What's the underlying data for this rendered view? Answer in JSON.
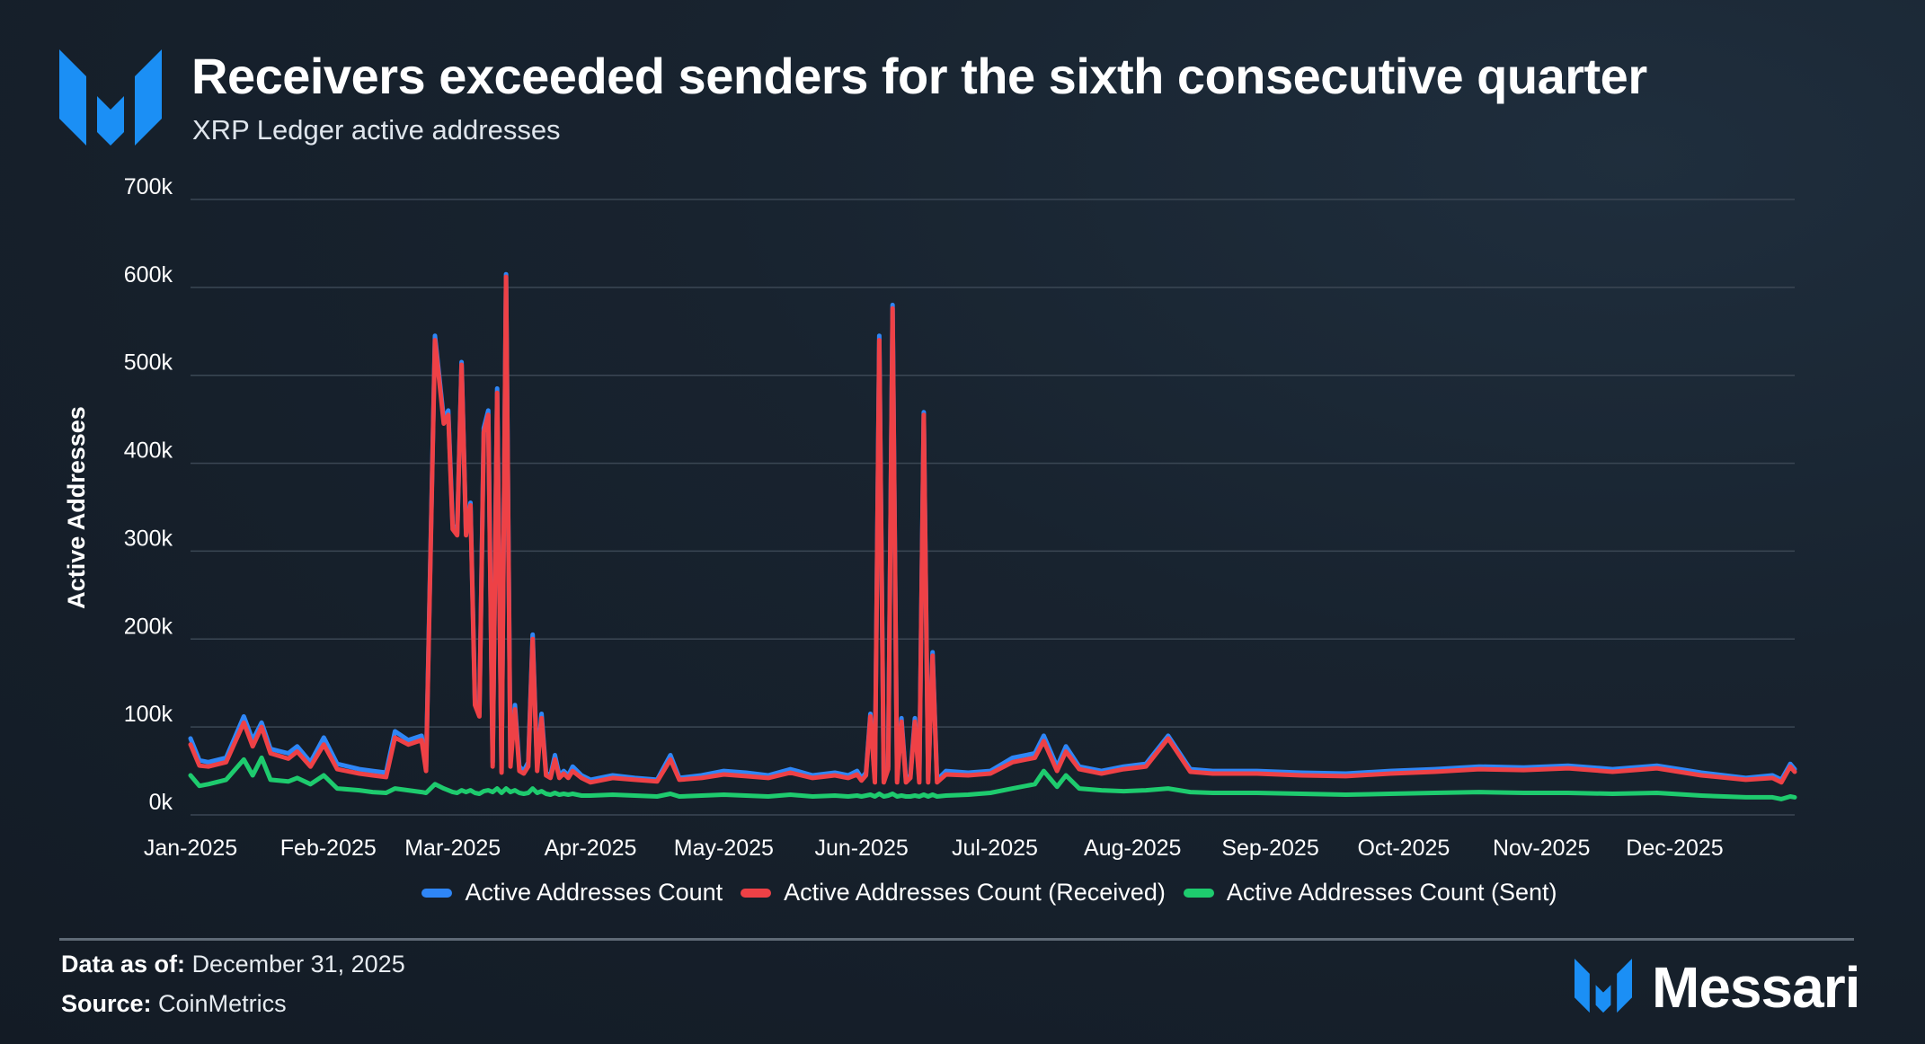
{
  "header": {
    "title": "Receivers exceeded senders for the sixth consecutive quarter",
    "subtitle": "XRP Ledger active addresses"
  },
  "footer": {
    "data_as_of_label": "Data as of:",
    "data_as_of_value": "December 31, 2025",
    "source_label": "Source:",
    "source_value": "CoinMetrics",
    "brand": "Messari"
  },
  "colors": {
    "total": "#2f86f6",
    "received": "#ee4146",
    "sent": "#1ecb6e",
    "brand": "#1b8ff5"
  },
  "chart_data": {
    "type": "line",
    "title": "Receivers exceeded senders for the sixth consecutive quarter",
    "subtitle": "XRP Ledger active addresses",
    "xlabel": "",
    "ylabel": "Active Addresses",
    "ylim": [
      0,
      700000
    ],
    "y_ticks": [
      0,
      100000,
      200000,
      300000,
      400000,
      500000,
      600000,
      700000
    ],
    "y_tick_labels": [
      "0k",
      "100k",
      "200k",
      "300k",
      "400k",
      "500k",
      "600k",
      "700k"
    ],
    "x_ticks": [
      "Jan-2025",
      "Feb-2025",
      "Mar-2025",
      "Apr-2025",
      "May-2025",
      "Jun-2025",
      "Jul-2025",
      "Aug-2025",
      "Sep-2025",
      "Oct-2025",
      "Nov-2025",
      "Dec-2025"
    ],
    "x_tick_days": [
      0,
      31,
      59,
      90,
      120,
      151,
      181,
      212,
      243,
      273,
      304,
      334
    ],
    "x_domain_days": [
      0,
      361
    ],
    "grid": true,
    "legend_position": "bottom",
    "x_days": [
      0,
      2,
      4,
      8,
      12,
      14,
      16,
      18,
      22,
      24,
      27,
      30,
      33,
      38,
      41,
      44,
      46,
      49,
      52,
      53,
      55,
      57,
      58,
      59,
      60,
      61,
      62,
      63,
      64,
      65,
      66,
      67,
      68,
      69,
      70,
      71,
      72,
      73,
      74,
      75,
      76,
      77,
      78,
      79,
      80,
      81,
      82,
      83,
      84,
      85,
      86,
      88,
      90,
      95,
      100,
      105,
      108,
      110,
      115,
      120,
      125,
      130,
      135,
      140,
      145,
      148,
      150,
      151,
      152,
      153,
      154,
      155,
      156,
      157,
      158,
      159,
      160,
      161,
      162,
      163,
      164,
      165,
      166,
      167,
      168,
      170,
      175,
      180,
      185,
      190,
      192,
      195,
      197,
      200,
      205,
      210,
      215,
      220,
      225,
      230,
      240,
      250,
      260,
      270,
      280,
      290,
      300,
      310,
      320,
      330,
      340,
      350,
      356,
      358,
      360,
      361
    ],
    "series": [
      {
        "name": "Active Addresses Count",
        "values": [
          87000,
          62000,
          60000,
          65000,
          112000,
          85000,
          105000,
          75000,
          70000,
          78000,
          60000,
          88000,
          58000,
          52000,
          50000,
          48000,
          95000,
          85000,
          90000,
          55000,
          545000,
          450000,
          460000,
          330000,
          320000,
          515000,
          320000,
          355000,
          130000,
          115000,
          440000,
          460000,
          60000,
          485000,
          50000,
          615000,
          60000,
          125000,
          55000,
          50000,
          60000,
          205000,
          55000,
          115000,
          48000,
          45000,
          68000,
          45000,
          50000,
          45000,
          55000,
          45000,
          40000,
          45000,
          42000,
          40000,
          68000,
          42000,
          45000,
          50000,
          48000,
          45000,
          52000,
          45000,
          48000,
          45000,
          50000,
          42000,
          48000,
          115000,
          40000,
          545000,
          40000,
          55000,
          580000,
          40000,
          110000,
          40000,
          45000,
          110000,
          40000,
          458000,
          40000,
          185000,
          40000,
          50000,
          48000,
          50000,
          65000,
          70000,
          90000,
          55000,
          78000,
          55000,
          50000,
          55000,
          58000,
          90000,
          52000,
          50000,
          50000,
          48000,
          47000,
          50000,
          52000,
          55000,
          54000,
          56000,
          52000,
          56000,
          48000,
          42000,
          45000,
          40000,
          58000,
          52000
        ]
      },
      {
        "name": "Active Addresses Count (Received)",
        "values": [
          80000,
          56000,
          55000,
          60000,
          105000,
          78000,
          100000,
          70000,
          64000,
          72000,
          55000,
          80000,
          52000,
          47000,
          45000,
          43000,
          88000,
          80000,
          85000,
          50000,
          540000,
          445000,
          455000,
          325000,
          318000,
          512000,
          318000,
          352000,
          125000,
          112000,
          435000,
          455000,
          55000,
          480000,
          48000,
          612000,
          55000,
          120000,
          50000,
          47000,
          55000,
          200000,
          50000,
          110000,
          45000,
          42000,
          63000,
          42000,
          47000,
          42000,
          50000,
          42000,
          37000,
          42000,
          40000,
          38000,
          63000,
          40000,
          42000,
          46000,
          44000,
          42000,
          48000,
          42000,
          45000,
          42000,
          46000,
          39000,
          45000,
          112000,
          37000,
          540000,
          37000,
          52000,
          576000,
          37000,
          106000,
          37000,
          42000,
          106000,
          37000,
          455000,
          37000,
          181000,
          37000,
          46000,
          45000,
          47000,
          60000,
          65000,
          84000,
          50000,
          72000,
          52000,
          47000,
          52000,
          55000,
          87000,
          49000,
          47000,
          47000,
          45000,
          44000,
          47000,
          49000,
          52000,
          51000,
          53000,
          49000,
          53000,
          45000,
          40000,
          42000,
          37000,
          55000,
          49000
        ]
      },
      {
        "name": "Active Addresses Count (Sent)",
        "values": [
          45000,
          33000,
          35000,
          40000,
          63000,
          45000,
          65000,
          40000,
          38000,
          42000,
          35000,
          45000,
          30000,
          28000,
          26000,
          25000,
          30000,
          28000,
          26000,
          25000,
          35000,
          30000,
          28000,
          26000,
          25000,
          28000,
          26000,
          28000,
          25000,
          24000,
          27000,
          28000,
          26000,
          30000,
          25000,
          30000,
          26000,
          28000,
          25000,
          24000,
          25000,
          30000,
          25000,
          27000,
          24000,
          23000,
          25000,
          23000,
          24000,
          23000,
          24000,
          22000,
          22000,
          23000,
          22000,
          21000,
          24000,
          21000,
          22000,
          23000,
          22000,
          21000,
          23000,
          21000,
          22000,
          21000,
          22000,
          21000,
          22000,
          23000,
          21000,
          24000,
          21000,
          22000,
          24000,
          21000,
          22000,
          21000,
          21000,
          22000,
          21000,
          23000,
          21000,
          23000,
          21000,
          22000,
          23000,
          25000,
          30000,
          35000,
          50000,
          32000,
          45000,
          30000,
          28000,
          27000,
          28000,
          30000,
          26000,
          25000,
          25000,
          24000,
          23000,
          24000,
          25000,
          26000,
          25000,
          25000,
          24000,
          25000,
          22000,
          20000,
          20000,
          18000,
          21000,
          20000
        ]
      }
    ]
  }
}
